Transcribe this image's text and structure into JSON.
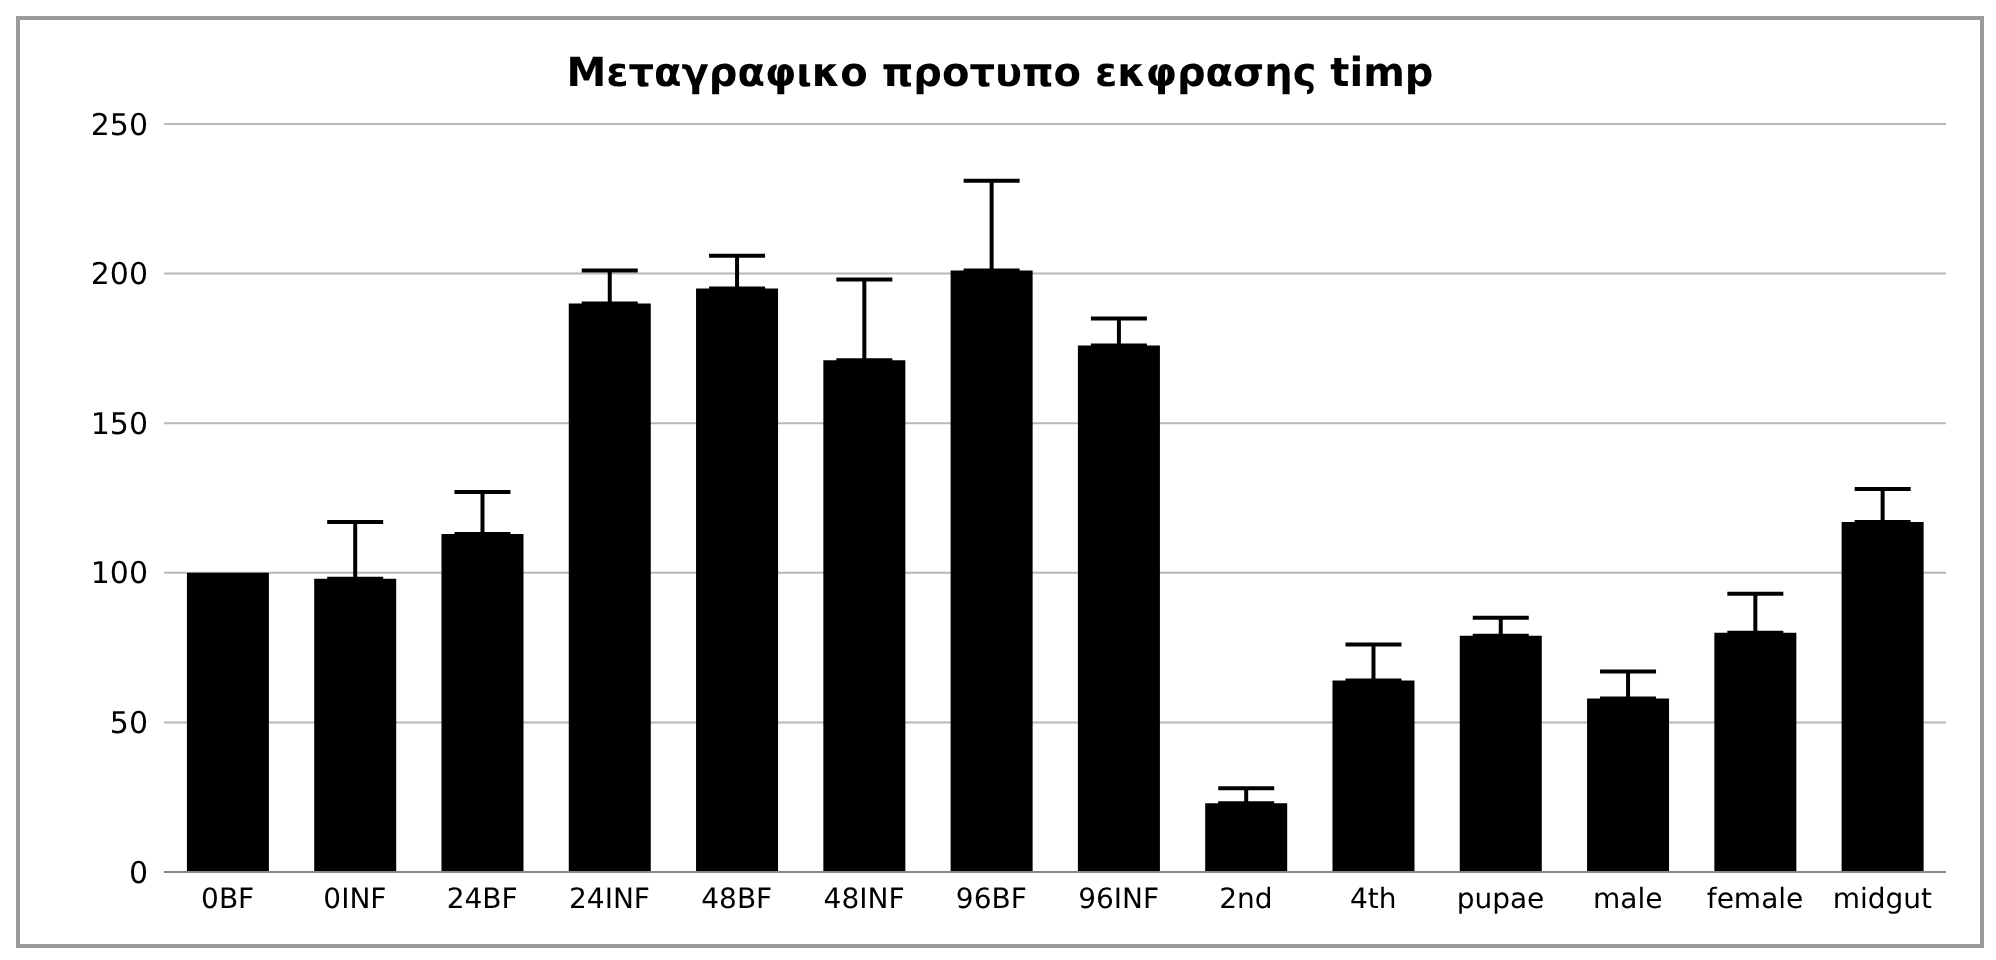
{
  "chart_data": {
    "type": "bar",
    "title": "Μεταγραφικο προτυπο εκφρασης timp",
    "categories": [
      "0BF",
      "0INF",
      "24BF",
      "24INF",
      "48BF",
      "48INF",
      "96BF",
      "96INF",
      "2nd",
      "4th",
      "pupae",
      "male",
      "female",
      "midgut"
    ],
    "values": [
      100,
      98,
      113,
      190,
      195,
      171,
      201,
      176,
      23,
      64,
      79,
      58,
      80,
      117
    ],
    "errors": [
      null,
      [
        98,
        117
      ],
      [
        113,
        127
      ],
      [
        190,
        201
      ],
      [
        195,
        206
      ],
      [
        171,
        198
      ],
      [
        201,
        231
      ],
      [
        176,
        185
      ],
      [
        23,
        28
      ],
      [
        64,
        76
      ],
      [
        79,
        85
      ],
      [
        58,
        67
      ],
      [
        80,
        93
      ],
      [
        117,
        128
      ]
    ],
    "color": "#000000",
    "ylim": [
      0,
      250
    ],
    "yticks": [
      0,
      50,
      100,
      150,
      200,
      250
    ],
    "grid": "y"
  }
}
